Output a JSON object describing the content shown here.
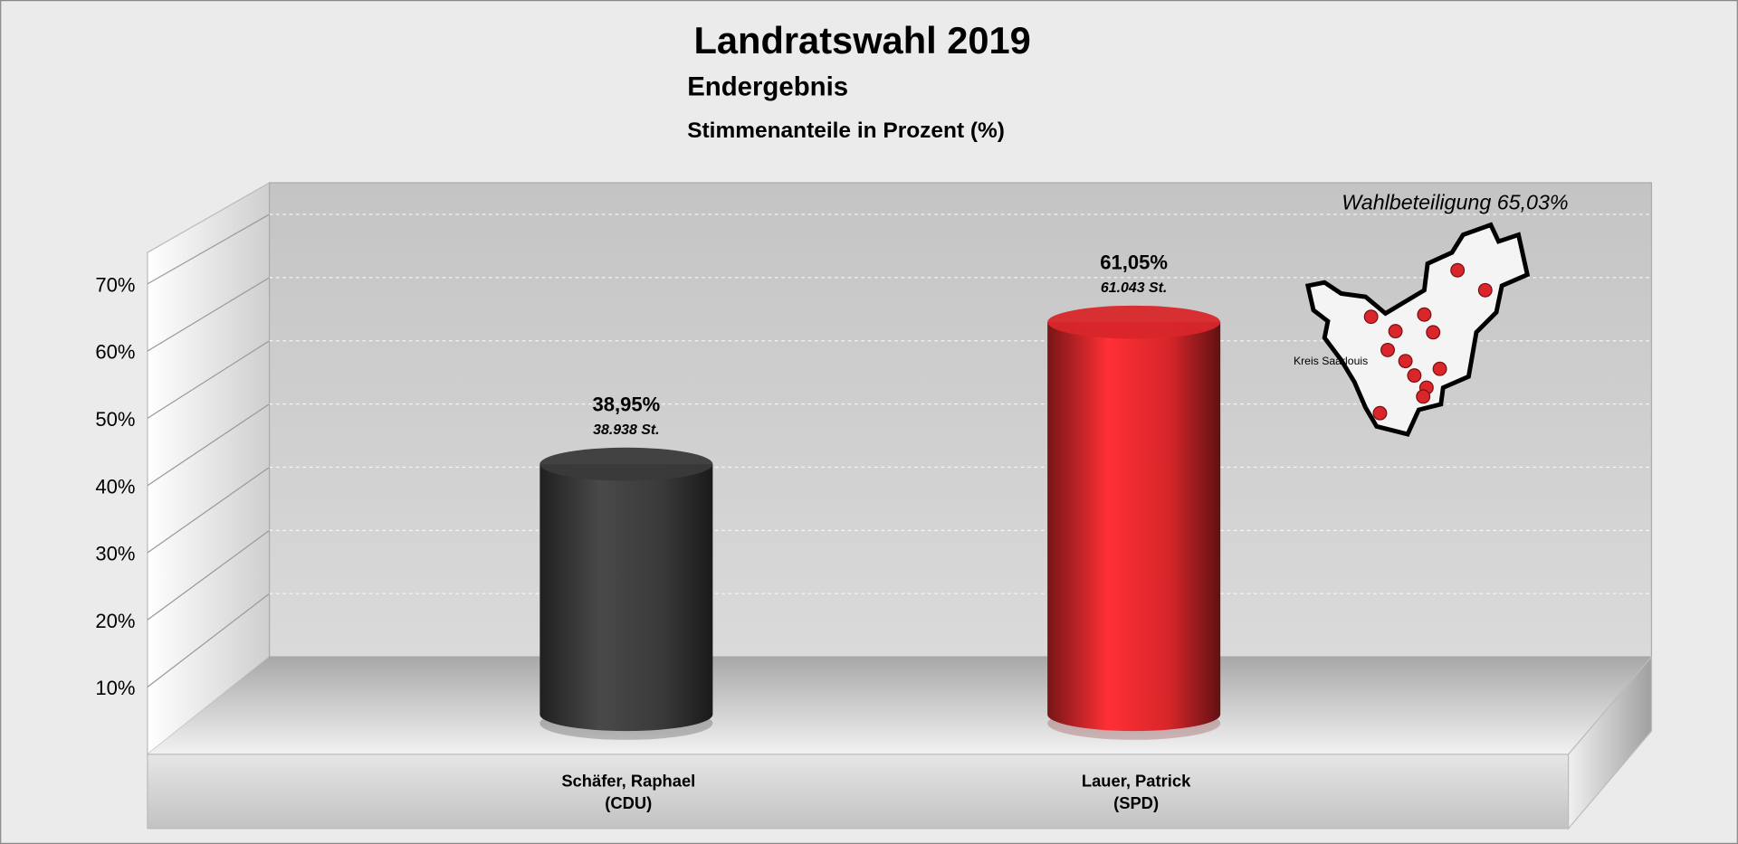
{
  "chart_data": {
    "type": "cylinder-bar",
    "title": "Landratswahl 2019",
    "subtitle": "Endergebnis",
    "value_caption": "Stimmenanteile in Prozent (%)",
    "annotation": "Wahlbeteiligung 65,03%",
    "map_label": "Kreis Saarlouis",
    "categories": [
      "Schäfer, Raphael",
      "Lauer, Patrick"
    ],
    "parties": [
      "(CDU)",
      "(SPD)"
    ],
    "values": [
      38.95,
      61.05
    ],
    "value_labels": [
      "38,95%",
      "61,05%"
    ],
    "votes": [
      38938,
      61043
    ],
    "vote_labels": [
      "38.938 St.",
      "61.043 St."
    ],
    "colors": [
      "#3a3a3a",
      "#d8262a"
    ],
    "ylim": [
      0,
      75
    ],
    "yticks": [
      {
        "value": 10,
        "label": "10%"
      },
      {
        "value": 20,
        "label": "20%"
      },
      {
        "value": 30,
        "label": "30%"
      },
      {
        "value": 40,
        "label": "40%"
      },
      {
        "value": 50,
        "label": "50%"
      },
      {
        "value": 60,
        "label": "60%"
      },
      {
        "value": 70,
        "label": "70%"
      }
    ],
    "grid": true
  }
}
